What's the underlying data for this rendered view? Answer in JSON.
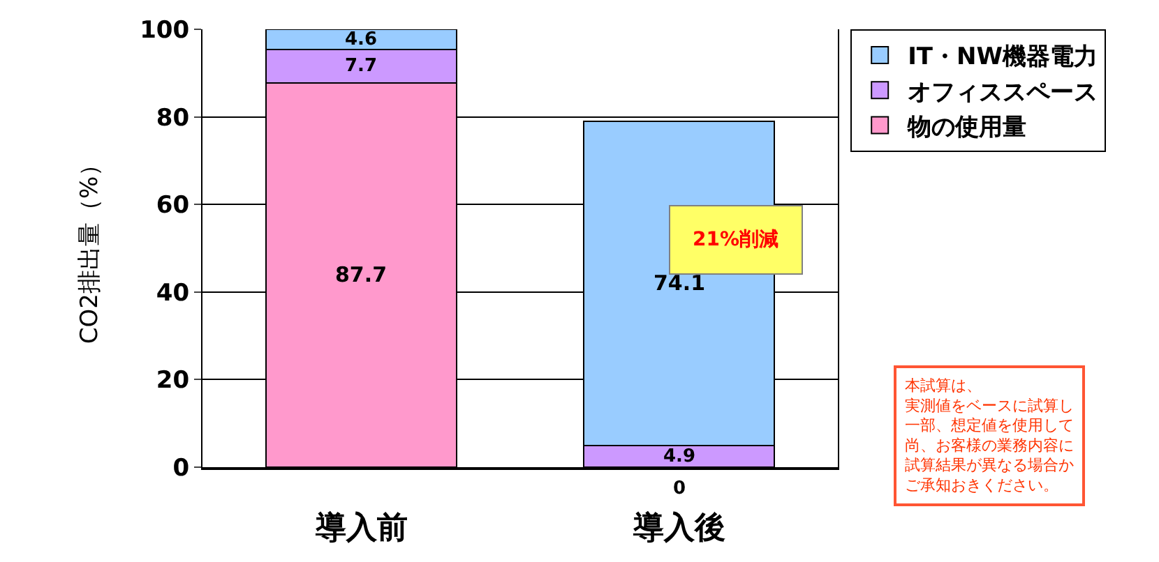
{
  "chart_data": {
    "type": "bar",
    "stacked": true,
    "ylabel": "CO2排出量（%）",
    "categories": [
      "導入前",
      "導入後"
    ],
    "series": [
      {
        "name": "物の使用量",
        "color": "#ff99cc",
        "values": [
          87.7,
          0
        ],
        "value_labels": [
          "87.7",
          null
        ]
      },
      {
        "name": "オフィススペース",
        "color": "#cc99ff",
        "values": [
          7.7,
          4.9
        ],
        "value_labels": [
          "7.7",
          "4.9"
        ]
      },
      {
        "name": "IT・NW機器電力",
        "color": "#99ccff",
        "values": [
          4.6,
          74.1
        ],
        "value_labels": [
          "4.6",
          "74.1"
        ]
      }
    ],
    "ylim": [
      0,
      100
    ],
    "yticks": [
      0,
      20,
      40,
      60,
      80,
      100
    ],
    "grid": "y",
    "legend": "top right",
    "annotations": [
      {
        "text": "0",
        "x": "導入後",
        "y": 0
      },
      "21%削減",
      "本試算は、",
      "実測値をベースに試算し",
      "一部、想定値を使用して",
      "尚、お客様の業務内容に",
      "試算結果が異なる場合か",
      "ご承知おきください。"
    ]
  }
}
